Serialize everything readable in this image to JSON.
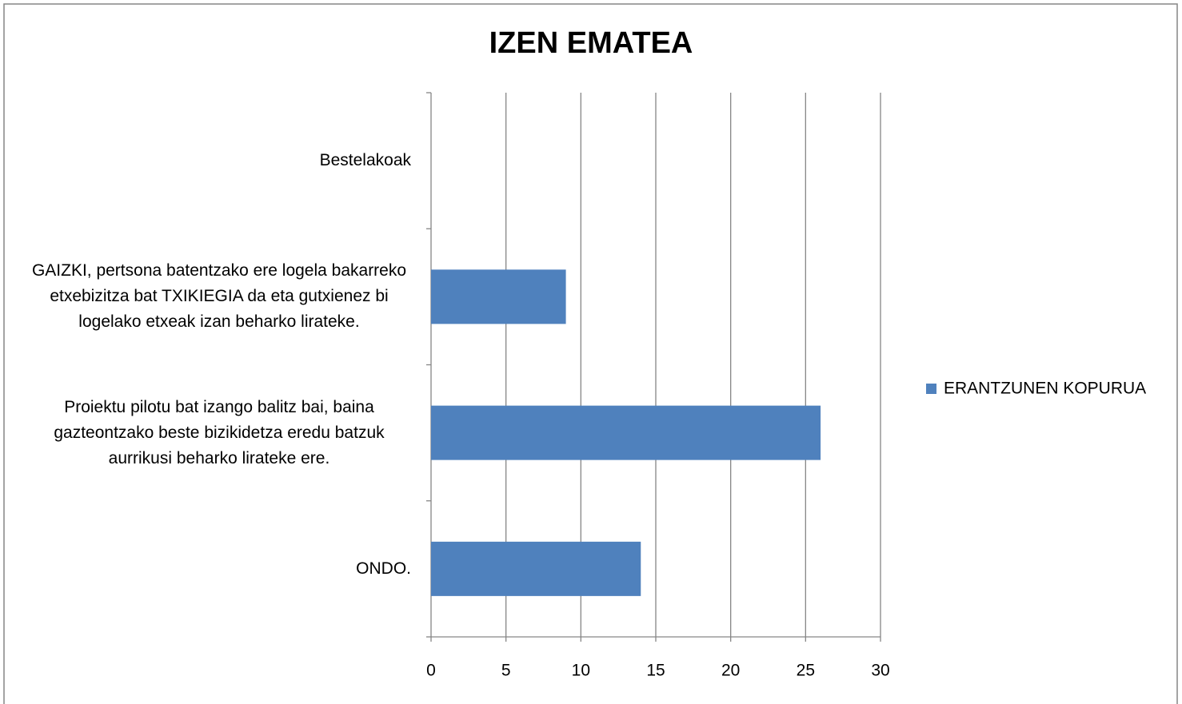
{
  "chart_data": {
    "type": "barh",
    "title": "IZEN EMATEA",
    "categories": [
      "ONDO.",
      "Proiektu pilotu bat izango balitz bai, baina gazteontzako beste bizikidetza eredu batzuk aurrikusi beharko lirateke ere.",
      "GAIZKI,  pertsona batentzako ere logela bakarreko etxebizitza bat TXIKIEGIA da eta gutxienez bi logelako etxeak izan beharko lirateke.",
      "Bestelakoak"
    ],
    "series": [
      {
        "name": "ERANTZUNEN KOPURUA",
        "color": "#4f81bd",
        "values": [
          14,
          26,
          9,
          0
        ]
      }
    ],
    "xlim": [
      0,
      30
    ],
    "xticks": [
      0,
      5,
      10,
      15,
      20,
      25,
      30
    ],
    "grid": true,
    "legend": "right"
  }
}
